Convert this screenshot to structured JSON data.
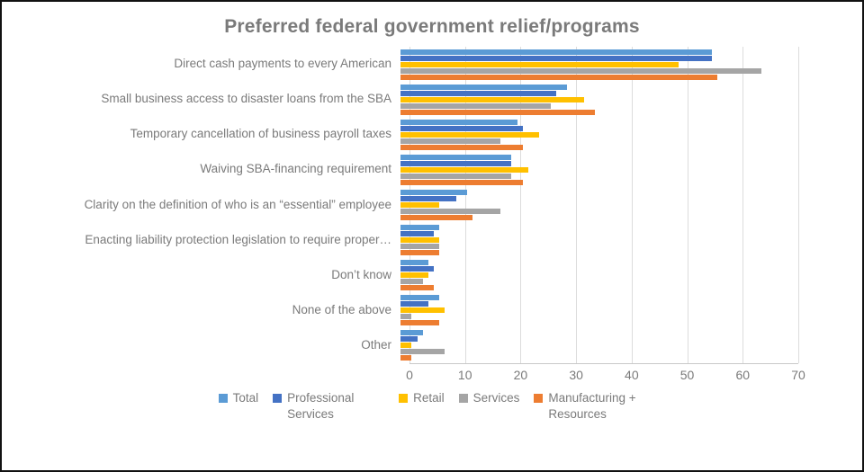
{
  "window": {
    "background_color": "#FFFFFF",
    "border_color": "#111111",
    "text_color": "#7A7A7A",
    "gridline_color": "#DCDCDC"
  },
  "chart_data": {
    "type": "bar",
    "orientation": "horizontal",
    "title": "Preferred federal government relief/programs",
    "categories": [
      "Direct cash payments to every American",
      "Small business access to disaster loans from the SBA",
      "Temporary cancellation of business payroll taxes",
      "Waiving SBA-financing requirement",
      "Clarity on the definition of who is an “essential” employee",
      "Enacting liability protection legislation to require proper…",
      "Don’t know",
      "None of the above",
      "Other"
    ],
    "series": [
      {
        "name": "Total",
        "color": "#5B9BD5",
        "values": [
          56,
          30,
          21,
          20,
          12,
          7,
          5,
          7,
          4
        ]
      },
      {
        "name": "Professional Services",
        "color": "#4472C4",
        "values": [
          56,
          28,
          22,
          20,
          10,
          6,
          6,
          5,
          3
        ]
      },
      {
        "name": "Retail",
        "color": "#FFC000",
        "values": [
          50,
          33,
          25,
          23,
          7,
          7,
          5,
          8,
          2
        ]
      },
      {
        "name": "Services",
        "color": "#A5A5A5",
        "values": [
          65,
          27,
          18,
          20,
          18,
          7,
          4,
          2,
          8
        ]
      },
      {
        "name": "Manufacturing + Resources",
        "color": "#ED7D31",
        "values": [
          57,
          35,
          22,
          22,
          13,
          7,
          6,
          7,
          2
        ]
      }
    ],
    "x_axis": {
      "min": 0,
      "max": 70,
      "tick_interval": 10,
      "tick_labels": [
        "0",
        "10",
        "20",
        "30",
        "40",
        "50",
        "60",
        "70"
      ]
    },
    "grid": "vertical",
    "legend_position": "bottom"
  }
}
